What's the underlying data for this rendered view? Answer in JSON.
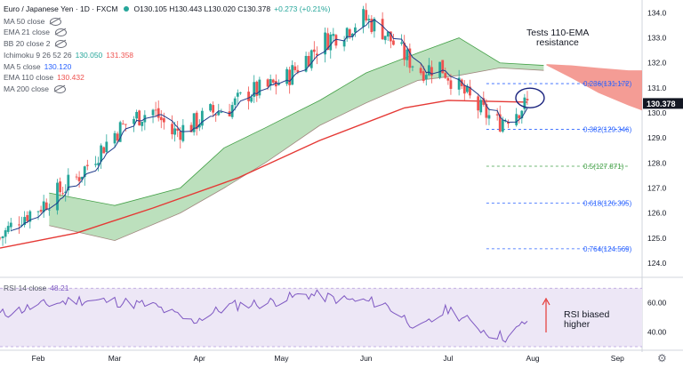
{
  "header": {
    "symbol": "Euro / Japanese Yen · 1D · FXCM",
    "ohlc": "O130.105 H130.443 L130.020 C130.378",
    "change": "+0.273 (+0.21%)"
  },
  "legend": [
    {
      "label": "MA 50 close",
      "values": [],
      "hidden": true
    },
    {
      "label": "EMA 21 close",
      "values": [],
      "hidden": true
    },
    {
      "label": "BB 20 close 2",
      "values": [],
      "hidden": true
    },
    {
      "label": "Ichimoku 9 26 52 26",
      "values": [
        "130.050",
        "131.358"
      ],
      "colors": [
        "#26a69a",
        "#ef5350"
      ],
      "hidden": false
    },
    {
      "label": "MA 5 close",
      "values": [
        "130.120"
      ],
      "colors": [
        "#2962ff"
      ],
      "hidden": false
    },
    {
      "label": "EMA 110 close",
      "values": [
        "130.432"
      ],
      "colors": [
        "#ef5350"
      ],
      "hidden": false
    },
    {
      "label": "MA 200 close",
      "values": [],
      "hidden": true
    }
  ],
  "rsi_legend": {
    "label": "RSI 14 close",
    "value": "48.21"
  },
  "colors": {
    "up": "#26a69a",
    "down": "#ef5350",
    "cloud": "#a5d6a7",
    "cloud_bear": "#f28b82",
    "ema110": "#e53935",
    "ma5": "#1e3a8a",
    "rsi": "#7e57c2",
    "rsi_band": "#ede7f6",
    "fib": "#2962ff",
    "fib_half": "#43a047",
    "price_label": "#131722"
  },
  "chart_data": {
    "type": "candlestick",
    "title": "Euro / Japanese Yen · 1D · FXCM",
    "price_axis": {
      "min": 123.5,
      "max": 134.3,
      "ticks": [
        124.0,
        125.0,
        126.0,
        127.0,
        128.0,
        129.0,
        130.0,
        131.0,
        132.0,
        133.0,
        134.0
      ]
    },
    "rsi_axis": {
      "min": 30,
      "max": 75,
      "ticks": [
        40.0,
        60.0
      ]
    },
    "time_axis": {
      "start": "2021-01-18",
      "end": "2021-09-10",
      "labels": [
        {
          "date": "2021-02-01",
          "text": "Feb"
        },
        {
          "date": "2021-03-01",
          "text": "Mar"
        },
        {
          "date": "2021-04-01",
          "text": "Apr"
        },
        {
          "date": "2021-05-01",
          "text": "May"
        },
        {
          "date": "2021-06-01",
          "text": "Jun"
        },
        {
          "date": "2021-07-01",
          "text": "Jul"
        },
        {
          "date": "2021-08-01",
          "text": "Aug"
        },
        {
          "date": "2021-09-01",
          "text": "Sep"
        }
      ]
    },
    "close_path": [
      [
        "2021-01-18",
        125.0
      ],
      [
        "2021-01-25",
        125.8
      ],
      [
        "2021-02-01",
        126.2
      ],
      [
        "2021-02-08",
        126.8
      ],
      [
        "2021-02-15",
        127.4
      ],
      [
        "2021-02-22",
        128.3
      ],
      [
        "2021-03-01",
        129.2
      ],
      [
        "2021-03-08",
        129.8
      ],
      [
        "2021-03-15",
        130.1
      ],
      [
        "2021-03-22",
        129.2
      ],
      [
        "2021-03-29",
        129.5
      ],
      [
        "2021-04-05",
        130.0
      ],
      [
        "2021-04-12",
        130.2
      ],
      [
        "2021-04-19",
        130.8
      ],
      [
        "2021-04-26",
        131.0
      ],
      [
        "2021-05-03",
        131.4
      ],
      [
        "2021-05-10",
        132.2
      ],
      [
        "2021-05-17",
        132.9
      ],
      [
        "2021-05-24",
        133.3
      ],
      [
        "2021-05-31",
        133.8
      ],
      [
        "2021-06-07",
        133.3
      ],
      [
        "2021-06-14",
        132.4
      ],
      [
        "2021-06-21",
        131.7
      ],
      [
        "2021-06-28",
        131.9
      ],
      [
        "2021-07-05",
        131.0
      ],
      [
        "2021-07-12",
        130.2
      ],
      [
        "2021-07-19",
        129.6
      ],
      [
        "2021-07-26",
        130.1
      ],
      [
        "2021-07-30",
        130.378
      ]
    ],
    "ema110": [
      [
        "2021-01-18",
        124.6
      ],
      [
        "2021-02-15",
        125.2
      ],
      [
        "2021-03-15",
        126.2
      ],
      [
        "2021-04-15",
        127.4
      ],
      [
        "2021-05-15",
        128.9
      ],
      [
        "2021-06-15",
        130.2
      ],
      [
        "2021-07-01",
        130.5
      ],
      [
        "2021-07-30",
        130.43
      ]
    ],
    "ichimoku_cloud_upper": [
      [
        "2021-02-05",
        126.8
      ],
      [
        "2021-03-01",
        126.3
      ],
      [
        "2021-03-25",
        127.0
      ],
      [
        "2021-04-10",
        128.6
      ],
      [
        "2021-04-25",
        129.4
      ],
      [
        "2021-05-15",
        130.5
      ],
      [
        "2021-06-01",
        131.6
      ],
      [
        "2021-06-20",
        132.4
      ],
      [
        "2021-07-05",
        133.0
      ],
      [
        "2021-07-20",
        132.0
      ],
      [
        "2021-08-05",
        131.9
      ]
    ],
    "ichimoku_cloud_lower": [
      [
        "2021-02-05",
        125.5
      ],
      [
        "2021-03-01",
        124.9
      ],
      [
        "2021-03-25",
        126.0
      ],
      [
        "2021-04-10",
        127.0
      ],
      [
        "2021-04-25",
        128.0
      ],
      [
        "2021-05-15",
        129.5
      ],
      [
        "2021-06-01",
        130.4
      ],
      [
        "2021-06-20",
        131.3
      ],
      [
        "2021-07-05",
        131.5
      ],
      [
        "2021-07-20",
        131.8
      ],
      [
        "2021-08-05",
        131.7
      ]
    ],
    "ichimoku_cloud_bearish": [
      [
        "2021-08-06",
        131.95,
        131.9
      ],
      [
        "2021-08-15",
        131.9,
        131.4
      ],
      [
        "2021-08-25",
        131.8,
        130.8
      ],
      [
        "2021-09-05",
        131.7,
        130.3
      ],
      [
        "2021-09-10",
        131.7,
        130.1
      ]
    ],
    "fib_levels": [
      {
        "level": "0.236",
        "price": 131.172,
        "label": "0.236(131.172)"
      },
      {
        "level": "0.382",
        "price": 129.346,
        "label": "0.382(129.346)"
      },
      {
        "level": "0.5",
        "price": 127.871,
        "label": "0.5(127.871)"
      },
      {
        "level": "0.618",
        "price": 126.395,
        "label": "0.618(126.395)"
      },
      {
        "level": "0.764",
        "price": 124.569,
        "label": "0.764(124.569)"
      }
    ],
    "last_price": {
      "value": 130.378,
      "label": "130.378"
    },
    "rsi": [
      [
        "2021-01-18",
        52
      ],
      [
        "2021-02-01",
        58
      ],
      [
        "2021-02-15",
        62
      ],
      [
        "2021-03-01",
        61
      ],
      [
        "2021-03-15",
        58
      ],
      [
        "2021-03-29",
        47
      ],
      [
        "2021-04-12",
        58
      ],
      [
        "2021-04-26",
        60
      ],
      [
        "2021-05-10",
        66
      ],
      [
        "2021-05-24",
        62
      ],
      [
        "2021-06-07",
        60
      ],
      [
        "2021-06-21",
        42
      ],
      [
        "2021-07-01",
        56
      ],
      [
        "2021-07-15",
        40
      ],
      [
        "2021-07-23",
        36
      ],
      [
        "2021-07-30",
        48.21
      ]
    ],
    "annotations": [
      {
        "text": "Tests 110-EMA",
        "line2": "resistance"
      },
      {
        "text": "RSI biased",
        "line2": "higher"
      }
    ]
  }
}
